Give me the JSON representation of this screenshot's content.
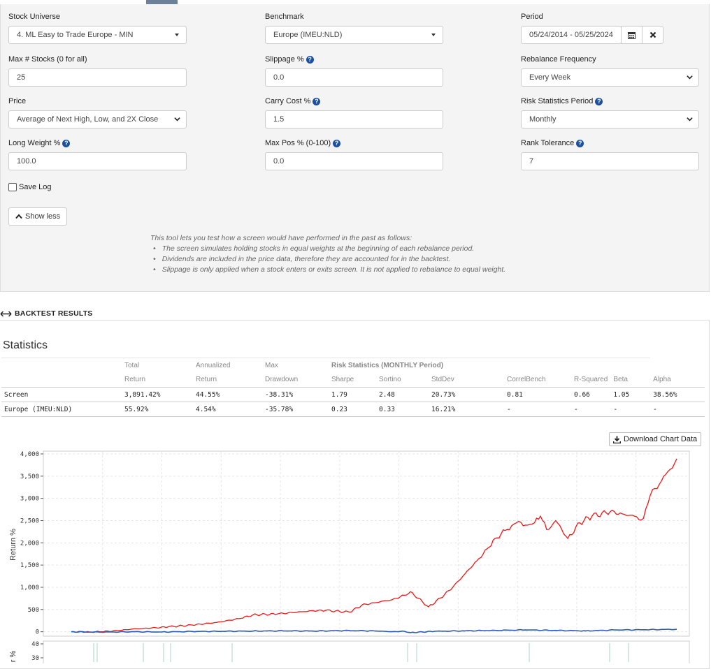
{
  "form": {
    "stock_universe": {
      "label": "Stock Universe",
      "value": "4. ML Easy to Trade Europe - MIN"
    },
    "benchmark": {
      "label": "Benchmark",
      "value": "Europe (IMEU:NLD)"
    },
    "period": {
      "label": "Period",
      "value": "05/24/2014 - 05/25/2024"
    },
    "max_stocks": {
      "label": "Max # Stocks (0 for all)",
      "value": "25"
    },
    "slippage": {
      "label": "Slippage %",
      "value": "0.0"
    },
    "rebalance_frequency": {
      "label": "Rebalance Frequency",
      "value": "Every Week"
    },
    "price": {
      "label": "Price",
      "value": "Average of Next High, Low, and 2X Close"
    },
    "carry_cost": {
      "label": "Carry Cost %",
      "value": "1.5"
    },
    "risk_period": {
      "label": "Risk Statistics Period",
      "value": "Monthly"
    },
    "long_weight": {
      "label": "Long Weight %",
      "value": "100.0"
    },
    "max_pos": {
      "label": "Max Pos % (0-100)",
      "value": "0.0"
    },
    "rank_tolerance": {
      "label": "Rank Tolerance",
      "value": "7"
    },
    "save_log": {
      "label": "Save Log",
      "checked": false
    },
    "show_less": "Show less",
    "help_glyph": "?",
    "calendar_icon": "calendar-icon",
    "clear_icon": "close-icon"
  },
  "note": {
    "intro": "This tool lets you test how a screen would have performed in the past as follows:",
    "bullets": [
      "The screen simulates holding stocks in equal weights at the beginning of each rebalance period.",
      "Dividends are included in the price data, therefore they are accounted for in the backtest.",
      "Slippage is only applied when a stock enters or exits screen. It is not applied to rebalance to equal weight."
    ]
  },
  "results": {
    "section_title": "BACKTEST RESULTS",
    "statistics_title": "Statistics",
    "header_top": [
      "Total",
      "Annualized",
      "Max"
    ],
    "risk_header": "Risk Statistics (MONTHLY Period)",
    "header_bottom": [
      "Return",
      "Return",
      "Drawdown",
      "Sharpe",
      "Sortino",
      "StdDev",
      "CorrelBench",
      "R-Squared",
      "Beta",
      "Alpha"
    ],
    "rows": [
      {
        "name": "Screen",
        "total": "3,891.42%",
        "annual": "44.55%",
        "maxdd": "-38.31%",
        "sharpe": "1.79",
        "sortino": "2.48",
        "stddev": "20.73%",
        "correl": "0.81",
        "rsq": "0.66",
        "beta": "1.05",
        "alpha": "38.56%"
      },
      {
        "name": "Europe (IMEU:NLD)",
        "total": "55.92%",
        "annual": "4.54%",
        "maxdd": "-35.78%",
        "sharpe": "0.23",
        "sortino": "0.33",
        "stddev": "16.21%",
        "correl": "-",
        "rsq": "-",
        "beta": "-",
        "alpha": "-"
      }
    ],
    "download_label": "Download Chart Data"
  },
  "colors": {
    "screen": "#e8191b",
    "benchmark": "#2a5ab8",
    "negative": "#c0282a",
    "lower_bars": "#a8d0c8"
  },
  "chart_data": {
    "type": "line",
    "ylabel": "Return %",
    "ylim": [
      -100,
      4000
    ],
    "yticks": [
      0,
      500,
      1000,
      1500,
      2000,
      2500,
      3000,
      3500,
      4000
    ],
    "ytick_labels": [
      "0",
      "500",
      "1,000",
      "1,500",
      "2,000",
      "2,500",
      "3,000",
      "3,500",
      "4,000"
    ],
    "xlim": [
      0,
      10
    ],
    "series": [
      {
        "key": "screen",
        "color": "#e8191b",
        "x": [
          0,
          0.3,
          0.5,
          0.8,
          1,
          1.4,
          1.6,
          2,
          2.4,
          2.8,
          3,
          3.4,
          3.8,
          4,
          4.2,
          4.6,
          4.8,
          5,
          5.2,
          5.3,
          5.5,
          5.6,
          5.9,
          6.1,
          6.3,
          6.5,
          6.7,
          6.9,
          7,
          7.2,
          7.35,
          7.5,
          7.65,
          7.75,
          7.85,
          8,
          8.2,
          8.4,
          8.6,
          8.9,
          9.1,
          9.3,
          9.45,
          9.6,
          9.75,
          9.85,
          10
        ],
        "y": [
          0,
          -5,
          0,
          30,
          60,
          90,
          110,
          150,
          210,
          300,
          380,
          400,
          450,
          470,
          480,
          440,
          600,
          650,
          700,
          720,
          820,
          900,
          560,
          760,
          1000,
          1300,
          1600,
          1900,
          2100,
          2300,
          2450,
          2400,
          2450,
          2600,
          2300,
          2500,
          2100,
          2450,
          2600,
          2700,
          2650,
          2600,
          2550,
          3200,
          3400,
          3600,
          3891
        ]
      },
      {
        "key": "benchmark",
        "color": "#2a5ab8",
        "x": [
          0,
          0.5,
          1,
          1.5,
          2,
          2.5,
          3,
          3.5,
          4,
          4.5,
          5,
          5.3,
          5.5,
          5.6,
          6,
          6.5,
          7,
          7.5,
          8,
          8.5,
          9,
          9.5,
          10
        ],
        "y": [
          0,
          -10,
          0,
          -5,
          5,
          10,
          15,
          20,
          15,
          25,
          20,
          0,
          10,
          -20,
          10,
          20,
          30,
          40,
          30,
          20,
          40,
          45,
          56
        ]
      }
    ],
    "lower_panel": {
      "ylabel_fragment": "r %",
      "yticks": [
        30,
        40
      ]
    }
  }
}
